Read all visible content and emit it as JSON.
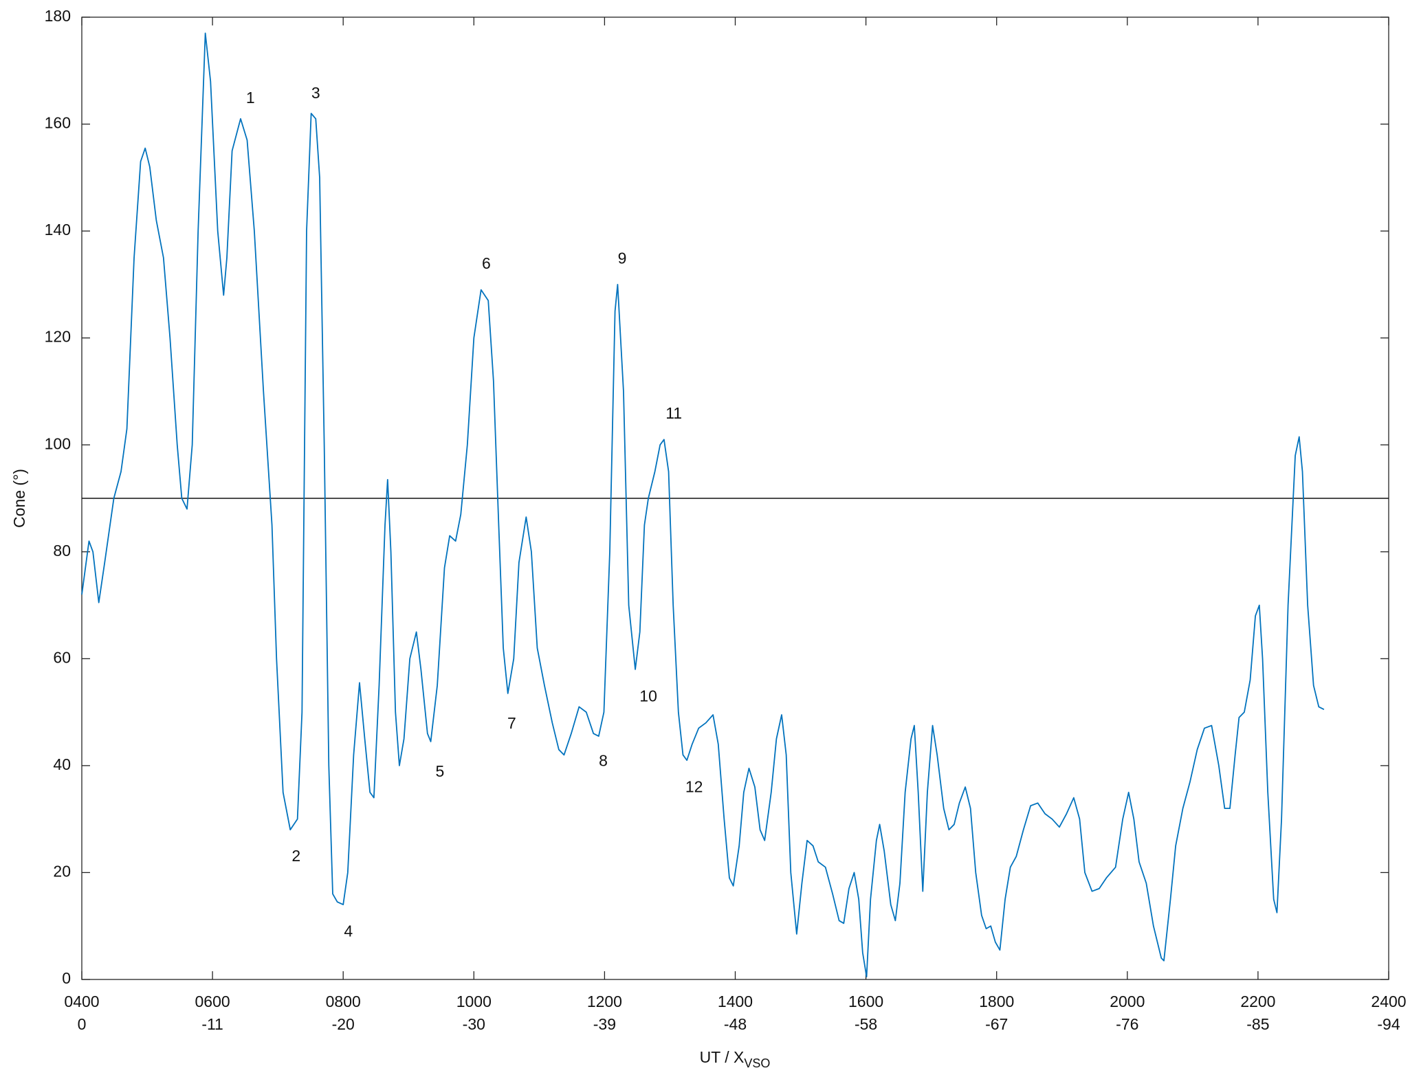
{
  "chart_data": {
    "type": "line",
    "y_label": "Cone (°)",
    "x_label": "UT / X",
    "x_label_subscript": "VSO",
    "xlim": [
      4,
      24
    ],
    "ylim": [
      0,
      180
    ],
    "xticks": [
      {
        "value": 4,
        "label": "0400"
      },
      {
        "value": 6,
        "label": "0600"
      },
      {
        "value": 8,
        "label": "0800"
      },
      {
        "value": 10,
        "label": "1000"
      },
      {
        "value": 12,
        "label": "1200"
      },
      {
        "value": 14,
        "label": "1400"
      },
      {
        "value": 16,
        "label": "1600"
      },
      {
        "value": 18,
        "label": "1800"
      },
      {
        "value": 20,
        "label": "2000"
      },
      {
        "value": 22,
        "label": "2200"
      },
      {
        "value": 24,
        "label": "2400"
      }
    ],
    "x_secondary_tick_labels": [
      "0",
      "-11",
      "-20",
      "-30",
      "-39",
      "-48",
      "-58",
      "-67",
      "-76",
      "-85",
      "-94"
    ],
    "yticks": [
      0,
      20,
      40,
      60,
      80,
      100,
      120,
      140,
      160,
      180
    ],
    "reference_line": 90,
    "color": "#0072BD",
    "x": [
      4.0,
      4.11,
      4.17,
      4.26,
      4.35,
      4.49,
      4.6,
      4.69,
      4.8,
      4.9,
      4.97,
      5.04,
      5.14,
      5.25,
      5.35,
      5.46,
      5.53,
      5.61,
      5.69,
      5.78,
      5.89,
      5.97,
      6.08,
      6.17,
      6.22,
      6.3,
      6.43,
      6.53,
      6.64,
      6.78,
      6.91,
      6.98,
      7.08,
      7.19,
      7.3,
      7.37,
      7.44,
      7.51,
      7.58,
      7.64,
      7.71,
      7.78,
      7.84,
      7.91,
      8.0,
      8.07,
      8.16,
      8.25,
      8.33,
      8.41,
      8.47,
      8.55,
      8.64,
      8.68,
      8.73,
      8.8,
      8.86,
      8.93,
      9.02,
      9.12,
      9.19,
      9.29,
      9.34,
      9.44,
      9.55,
      9.63,
      9.72,
      9.8,
      9.9,
      10.0,
      10.11,
      10.22,
      10.3,
      10.38,
      10.45,
      10.52,
      10.61,
      10.69,
      10.8,
      10.88,
      10.97,
      11.08,
      11.2,
      11.3,
      11.38,
      11.49,
      11.61,
      11.72,
      11.83,
      11.91,
      11.99,
      12.08,
      12.16,
      12.2,
      12.29,
      12.37,
      12.47,
      12.54,
      12.61,
      12.67,
      12.77,
      12.85,
      12.91,
      12.98,
      13.05,
      13.13,
      13.2,
      13.26,
      13.34,
      13.44,
      13.55,
      13.66,
      13.74,
      13.83,
      13.91,
      13.97,
      14.06,
      14.13,
      14.21,
      14.3,
      14.38,
      14.45,
      14.55,
      14.63,
      14.71,
      14.78,
      14.85,
      14.94,
      15.02,
      15.1,
      15.19,
      15.27,
      15.38,
      15.49,
      15.59,
      15.66,
      15.74,
      15.82,
      15.89,
      15.95,
      16.01,
      16.07,
      16.16,
      16.21,
      16.28,
      16.38,
      16.45,
      16.52,
      16.6,
      16.69,
      16.74,
      16.8,
      16.87,
      16.94,
      17.02,
      17.09,
      17.19,
      17.27,
      17.35,
      17.43,
      17.52,
      17.6,
      17.68,
      17.77,
      17.84,
      17.91,
      17.98,
      18.05,
      18.13,
      18.21,
      18.3,
      18.41,
      18.52,
      18.63,
      18.74,
      18.85,
      18.96,
      19.07,
      19.18,
      19.27,
      19.35,
      19.46,
      19.57,
      19.68,
      19.82,
      19.93,
      20.02,
      20.1,
      20.18,
      20.29,
      20.4,
      20.52,
      20.56,
      20.66,
      20.74,
      20.85,
      20.96,
      21.07,
      21.18,
      21.29,
      21.4,
      21.49,
      21.57,
      21.65,
      21.71,
      21.79,
      21.88,
      21.96,
      22.02,
      22.07,
      22.15,
      22.24,
      22.29,
      22.36,
      22.46,
      22.57,
      22.63,
      22.68,
      22.76,
      22.85,
      22.93,
      23.01
    ],
    "values": [
      72,
      82,
      80,
      70.5,
      78,
      90,
      95,
      103,
      135,
      153,
      155.5,
      152,
      142,
      135,
      120,
      100,
      90,
      88,
      100,
      140,
      177,
      168,
      140,
      128,
      135,
      155,
      161,
      157,
      140,
      110,
      85,
      60,
      35,
      28,
      30,
      50,
      140,
      162,
      161,
      150,
      100,
      40,
      16,
      14.5,
      14,
      20,
      42,
      55.5,
      45,
      35,
      34,
      55,
      85,
      93.5,
      80,
      50,
      40,
      45,
      60,
      65,
      58,
      46,
      44.5,
      55,
      77,
      83,
      82,
      87,
      100,
      120,
      129,
      127,
      112,
      85,
      62,
      53.5,
      60,
      78,
      86.5,
      80,
      62,
      55,
      48,
      43,
      42,
      46,
      51,
      50,
      46,
      45.5,
      50,
      80,
      125,
      130,
      110,
      70,
      58,
      65,
      85,
      90,
      95,
      100,
      101,
      95,
      70,
      50,
      42,
      41,
      44,
      47,
      48,
      49.5,
      44,
      30,
      19,
      17.5,
      25,
      35,
      39.5,
      36,
      28,
      26,
      35,
      45,
      49.5,
      42,
      20,
      8.5,
      18,
      26,
      25,
      22,
      21,
      16,
      11,
      10.5,
      17,
      20,
      15,
      5,
      0.5,
      15,
      26,
      29,
      24,
      14,
      11,
      18,
      35,
      45,
      47.5,
      35,
      16.5,
      35,
      47.5,
      42,
      32,
      28,
      29,
      33,
      36,
      32,
      20,
      12,
      9.5,
      10,
      7,
      5.5,
      15,
      21,
      23,
      28,
      32.5,
      33,
      31,
      30,
      28.5,
      31,
      34,
      30,
      20,
      16.5,
      17,
      19,
      21,
      30,
      35,
      30,
      22,
      18,
      10,
      4,
      3.5,
      15,
      25,
      32,
      37,
      43,
      47,
      47.5,
      40,
      32,
      32,
      42,
      49,
      50,
      56,
      68,
      70,
      60,
      35,
      15,
      12.5,
      30,
      70,
      98,
      101.5,
      95,
      70,
      55,
      51,
      50.5
    ],
    "annotations": [
      {
        "text": "1",
        "x": 6.58,
        "y": 164.7
      },
      {
        "text": "2",
        "x": 7.28,
        "y": 22.9
      },
      {
        "text": "3",
        "x": 7.58,
        "y": 165.6
      },
      {
        "text": "4",
        "x": 8.08,
        "y": 8.8
      },
      {
        "text": "5",
        "x": 9.48,
        "y": 38.7
      },
      {
        "text": "6",
        "x": 10.19,
        "y": 133.7
      },
      {
        "text": "7",
        "x": 10.58,
        "y": 47.7
      },
      {
        "text": "8",
        "x": 11.98,
        "y": 40.7
      },
      {
        "text": "9",
        "x": 12.27,
        "y": 134.7
      },
      {
        "text": "10",
        "x": 12.67,
        "y": 52.8
      },
      {
        "text": "11",
        "x": 13.06,
        "y": 105.7
      },
      {
        "text": "12",
        "x": 13.37,
        "y": 35.8
      }
    ]
  }
}
